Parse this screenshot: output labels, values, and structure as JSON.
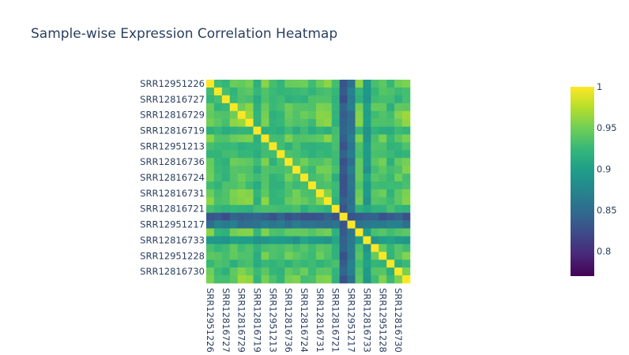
{
  "chart_data": {
    "type": "heatmap",
    "title": "Sample-wise Expression Correlation Heatmap",
    "n": 26,
    "y_tick_labels": [
      {
        "index": 0,
        "label": "SRR12951226"
      },
      {
        "index": 2,
        "label": "SRR12816727"
      },
      {
        "index": 4,
        "label": "SRR12816729"
      },
      {
        "index": 6,
        "label": "SRR12816719"
      },
      {
        "index": 8,
        "label": "SRR12951213"
      },
      {
        "index": 10,
        "label": "SRR12816736"
      },
      {
        "index": 12,
        "label": "SRR12816724"
      },
      {
        "index": 14,
        "label": "SRR12816731"
      },
      {
        "index": 16,
        "label": "SRR12816721"
      },
      {
        "index": 18,
        "label": "SRR12951217"
      },
      {
        "index": 20,
        "label": "SRR12816733"
      },
      {
        "index": 22,
        "label": "SRR12951228"
      },
      {
        "index": 24,
        "label": "SRR12816730"
      }
    ],
    "x_tick_labels": [
      {
        "index": 0,
        "label": "SRR12951226"
      },
      {
        "index": 2,
        "label": "SRR12816727"
      },
      {
        "index": 4,
        "label": "SRR12816729"
      },
      {
        "index": 6,
        "label": "SRR12816719"
      },
      {
        "index": 8,
        "label": "SRR12951213"
      },
      {
        "index": 10,
        "label": "SRR12816736"
      },
      {
        "index": 12,
        "label": "SRR12816724"
      },
      {
        "index": 14,
        "label": "SRR12816731"
      },
      {
        "index": 16,
        "label": "SRR12816721"
      },
      {
        "index": 18,
        "label": "SRR12951217"
      },
      {
        "index": 20,
        "label": "SRR12816733"
      },
      {
        "index": 22,
        "label": "SRR12951228"
      },
      {
        "index": 24,
        "label": "SRR12816730"
      }
    ],
    "sample_effects": [
      0.955,
      0.935,
      0.93,
      0.955,
      0.96,
      0.96,
      0.925,
      0.955,
      0.93,
      0.93,
      0.95,
      0.95,
      0.945,
      0.94,
      0.96,
      0.965,
      0.93,
      0.84,
      0.865,
      0.955,
      0.9,
      0.94,
      0.95,
      0.93,
      0.95,
      0.96
    ],
    "zmin": 0.77,
    "zmax": 1.0,
    "colorscale": "viridis",
    "colorbar_ticks": [
      {
        "value": 1.0,
        "label": "1"
      },
      {
        "value": 0.95,
        "label": "0.95"
      },
      {
        "value": 0.9,
        "label": "0.9"
      },
      {
        "value": 0.85,
        "label": "0.85"
      },
      {
        "value": 0.8,
        "label": "0.8"
      }
    ]
  }
}
